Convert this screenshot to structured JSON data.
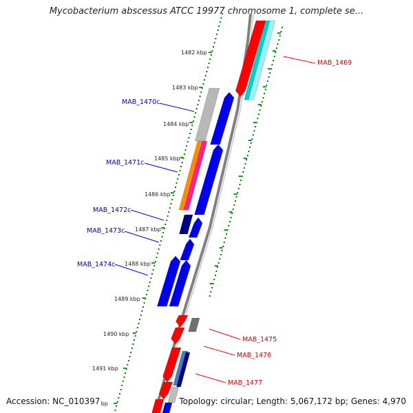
{
  "title": "Mycobacterium abscessus ATCC 19977 chromosome 1, complete se...",
  "footer": {
    "accession": "Accession: NC_010397",
    "summary": "Topology: circular; Length: 5,067,172 bp; Genes: 4,970"
  },
  "colors": {
    "forward_strand": "#ff0000",
    "reverse_strand": "#0000ff",
    "forward_label": "#cc0000",
    "reverse_label": "#0000aa",
    "backbone": "#808080",
    "tick": "#00aa00",
    "tick_dot": "#007700"
  },
  "scale_labels": [
    "1482 kbp",
    "1483 kbp",
    "1484 kbp",
    "1485 kbp",
    "1486 kbp",
    "1487 kbp",
    "1488 kbp",
    "1489 kbp",
    "1490 kbp",
    "1491 kbp",
    "kbp"
  ],
  "gene_labels": {
    "reverse": [
      "MAB_1470c",
      "MAB_1471c",
      "MAB_1472c",
      "MAB_1473c",
      "MAB_1474c"
    ],
    "forward": [
      "MAB_1469",
      "MAB_1475",
      "MAB_1476",
      "MAB_1477"
    ]
  }
}
